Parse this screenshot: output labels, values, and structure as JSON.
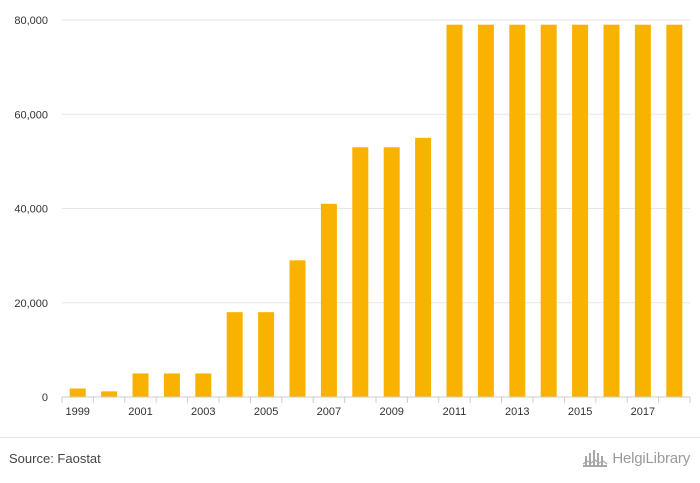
{
  "chart_data": {
    "type": "bar",
    "title": "",
    "xlabel": "",
    "ylabel": "",
    "categories": [
      "1999",
      "2000",
      "2001",
      "2002",
      "2003",
      "2004",
      "2005",
      "2006",
      "2007",
      "2008",
      "2009",
      "2010",
      "2011",
      "2012",
      "2013",
      "2014",
      "2015",
      "2016",
      "2017",
      "2018"
    ],
    "x_tick_labels": [
      "1999",
      "",
      "2001",
      "",
      "2003",
      "",
      "2005",
      "",
      "2007",
      "",
      "2009",
      "",
      "2011",
      "",
      "2013",
      "",
      "2015",
      "",
      "2017",
      ""
    ],
    "values": [
      1800,
      1200,
      5000,
      5000,
      5000,
      18000,
      18000,
      29000,
      41000,
      53000,
      53000,
      55000,
      79000,
      79000,
      79000,
      79000,
      79000,
      79000,
      79000,
      79000
    ],
    "ylim": [
      0,
      80000
    ],
    "y_ticks": [
      0,
      20000,
      40000,
      60000,
      80000
    ],
    "y_tick_labels": [
      "0",
      "20,000",
      "40,000",
      "60,000",
      "80,000"
    ],
    "grid": true,
    "bar_color": "#f9b200",
    "grid_color": "#e6e6e6"
  },
  "footer": {
    "source": "Source: Faostat",
    "logo_text": "HelgiLibrary"
  }
}
